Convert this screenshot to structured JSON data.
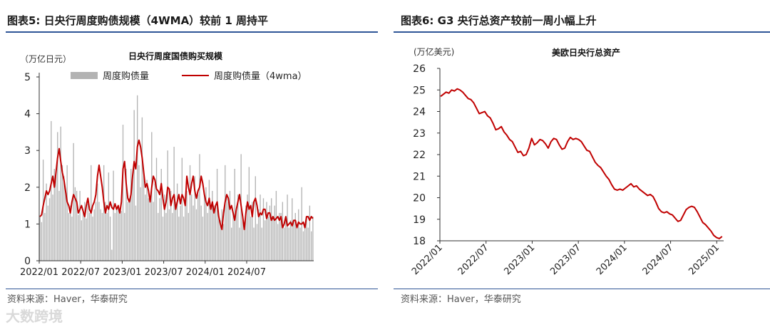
{
  "left_panel": {
    "figure_title": "图表5:  日央行周度购债规模（4WMA）较前 1 周持平",
    "source": "资料来源：Haver，华泰研究",
    "watermark": "大数跨境"
  },
  "right_panel": {
    "figure_title": "图表6:  G3 央行总资产较前一周小幅上升",
    "source": "资料来源：Haver，华泰研究"
  },
  "chart_data": [
    {
      "type": "bar",
      "title": "日央行周度国债购买规模",
      "unit_label": "（万亿日元）",
      "ylim": [
        0,
        5
      ],
      "yticks": [
        "0",
        "1",
        "2",
        "3",
        "4",
        "5"
      ],
      "xticks": [
        "2022/01",
        "2022/07",
        "2023/01",
        "2023/07",
        "2024/01",
        "2024/07"
      ],
      "legend_position": "top",
      "series": [
        {
          "name": "周度购债量",
          "kind": "bar",
          "color": "#b3b3b3",
          "values": [
            1.2,
            1.05,
            2.75,
            1.3,
            2.1,
            1.5,
            1.7,
            3.8,
            1.8,
            2.5,
            2.4,
            3.5,
            1.9,
            3.65,
            2.6,
            2.3,
            1.9,
            2.6,
            1.3,
            1.5,
            1.2,
            3.2,
            2.0,
            1.9,
            1.25,
            1.9,
            1.1,
            1.4,
            1.6,
            1.15,
            1.55,
            1.3,
            2.6,
            1.2,
            1.4,
            1.6,
            2.1,
            1.6,
            1.4,
            1.3,
            2.6,
            1.6,
            1.3,
            2.4,
            1.2,
            0.3,
            2.45,
            1.3,
            1.4,
            1.5,
            1.4,
            1.35,
            3.7,
            1.3,
            2.5,
            1.6,
            1.7,
            2.5,
            2.3,
            4.1,
            1.5,
            4.5,
            2.6,
            2.0,
            3.9,
            2.4,
            1.8,
            2.2,
            1.7,
            1.6,
            3.5,
            1.6,
            2.1,
            2.8,
            1.3,
            1.7,
            2.5,
            1.2,
            1.8,
            1.3,
            3.0,
            1.4,
            1.9,
            1.3,
            3.1,
            1.6,
            2.1,
            1.2,
            1.5,
            2.8,
            1.2,
            1.6,
            1.9,
            1.3,
            2.6,
            1.8,
            1.5,
            2.3,
            1.4,
            1.8,
            2.9,
            1.5,
            1.2,
            1.8,
            2.0,
            1.3,
            2.2,
            1.4,
            1.9,
            1.5,
            1.5,
            2.5,
            1.2,
            1.1,
            1.4,
            1.0,
            2.6,
            1.8,
            1.6,
            1.9,
            0.9,
            1.3,
            2.5,
            1.4,
            1.8,
            0.9,
            2.9,
            1.2,
            1.0,
            1.5,
            1.8,
            2.55,
            1.2,
            1.6,
            0.9,
            2.3,
            1.0,
            1.4,
            1.8,
            0.9,
            1.7,
            1.1,
            1.6,
            1.2,
            1.5,
            1.7,
            1.2,
            1.5,
            1.9,
            1.0,
            1.3,
            1.3,
            1.6,
            0.9,
            1.2,
            1.8,
            0.9,
            1.1,
            1.7,
            1.1,
            1.3,
            0.9,
            1.4,
            0.9,
            2.0,
            0.8,
            0.9,
            1.2,
            0.9,
            1.5,
            0.8,
            1.2
          ]
        },
        {
          "name": "周度购债量（4wma）",
          "kind": "line",
          "color": "#c00000",
          "values": [
            1.2,
            1.25,
            1.5,
            1.7,
            1.9,
            1.8,
            1.9,
            2.1,
            2.3,
            2.0,
            2.4,
            2.8,
            3.05,
            2.7,
            2.4,
            2.2,
            1.9,
            1.6,
            1.5,
            1.3,
            1.6,
            1.8,
            1.7,
            1.6,
            1.3,
            1.4,
            1.5,
            1.35,
            1.2,
            1.5,
            1.7,
            1.4,
            1.3,
            1.5,
            1.6,
            1.8,
            2.3,
            2.6,
            2.3,
            2.0,
            1.6,
            1.3,
            1.5,
            1.4,
            1.6,
            1.45,
            1.4,
            1.55,
            1.4,
            1.5,
            1.3,
            1.6,
            2.5,
            2.7,
            2.1,
            1.7,
            1.6,
            1.8,
            2.3,
            2.7,
            2.5,
            3.1,
            3.28,
            3.1,
            2.8,
            2.4,
            2.0,
            2.1,
            1.9,
            1.6,
            2.0,
            2.3,
            2.2,
            1.95,
            1.9,
            1.8,
            2.1,
            1.7,
            1.4,
            1.6,
            2.0,
            1.95,
            1.5,
            1.7,
            1.8,
            1.4,
            1.6,
            1.8,
            1.55,
            1.8,
            1.7,
            1.5,
            2.3,
            2.0,
            1.8,
            2.1,
            2.3,
            1.9,
            1.7,
            1.9,
            2.0,
            2.3,
            2.1,
            1.8,
            1.6,
            1.5,
            1.7,
            1.4,
            1.6,
            1.3,
            1.5,
            1.6,
            1.2,
            1.0,
            0.85,
            1.3,
            1.6,
            1.8,
            1.7,
            1.4,
            1.5,
            1.3,
            1.1,
            1.4,
            1.6,
            1.8,
            1.5,
            1.2,
            0.85,
            1.3,
            1.6,
            1.4,
            1.5,
            1.2,
            1.6,
            1.7,
            1.5,
            1.2,
            1.3,
            1.25,
            1.4,
            1.4,
            1.15,
            1.3,
            1.3,
            1.1,
            1.2,
            1.1,
            1.15,
            1.2,
            1.1,
            1.2,
            0.9,
            1.0,
            1.2,
            0.95,
            1.0,
            1.05,
            0.95,
            1.1,
            1.1,
            0.9,
            1.05,
            1.0,
            1.0,
            1.05,
            0.9,
            1.2,
            1.2,
            1.1,
            1.2,
            1.15
          ]
        }
      ]
    },
    {
      "type": "line",
      "title": "美欧日央行总资产",
      "unit_label": "(万亿美元)",
      "ylim": [
        18,
        26
      ],
      "yticks": [
        "18",
        "19",
        "20",
        "21",
        "22",
        "23",
        "24",
        "25",
        "26"
      ],
      "xticks": [
        "2022/01",
        "2022/07",
        "2023/01",
        "2023/07",
        "2024/01",
        "2024/07",
        "2025/01"
      ],
      "series": [
        {
          "name": "",
          "color": "#c00000",
          "values": [
            24.7,
            24.8,
            24.9,
            24.85,
            25.0,
            24.95,
            25.05,
            25.0,
            24.9,
            24.75,
            24.6,
            24.55,
            24.4,
            24.15,
            23.9,
            23.95,
            24.0,
            23.8,
            23.7,
            23.45,
            23.15,
            23.2,
            23.3,
            23.05,
            22.9,
            22.7,
            22.6,
            22.35,
            22.1,
            22.15,
            21.95,
            22.0,
            22.3,
            22.75,
            22.45,
            22.55,
            22.7,
            22.65,
            22.5,
            22.3,
            22.6,
            22.75,
            22.7,
            22.45,
            22.25,
            22.3,
            22.6,
            22.8,
            22.7,
            22.75,
            22.7,
            22.6,
            22.4,
            22.2,
            22.15,
            21.9,
            21.65,
            21.5,
            21.4,
            21.2,
            21.0,
            20.85,
            20.6,
            20.4,
            20.35,
            20.4,
            20.35,
            20.45,
            20.55,
            20.65,
            20.5,
            20.55,
            20.4,
            20.3,
            20.2,
            20.1,
            20.15,
            20.05,
            19.8,
            19.5,
            19.35,
            19.3,
            19.35,
            19.25,
            19.2,
            19.05,
            18.9,
            18.95,
            19.2,
            19.45,
            19.55,
            19.6,
            19.55,
            19.35,
            19.1,
            18.85,
            18.75,
            18.6,
            18.45,
            18.25,
            18.15,
            18.1,
            18.2
          ]
        }
      ]
    }
  ]
}
